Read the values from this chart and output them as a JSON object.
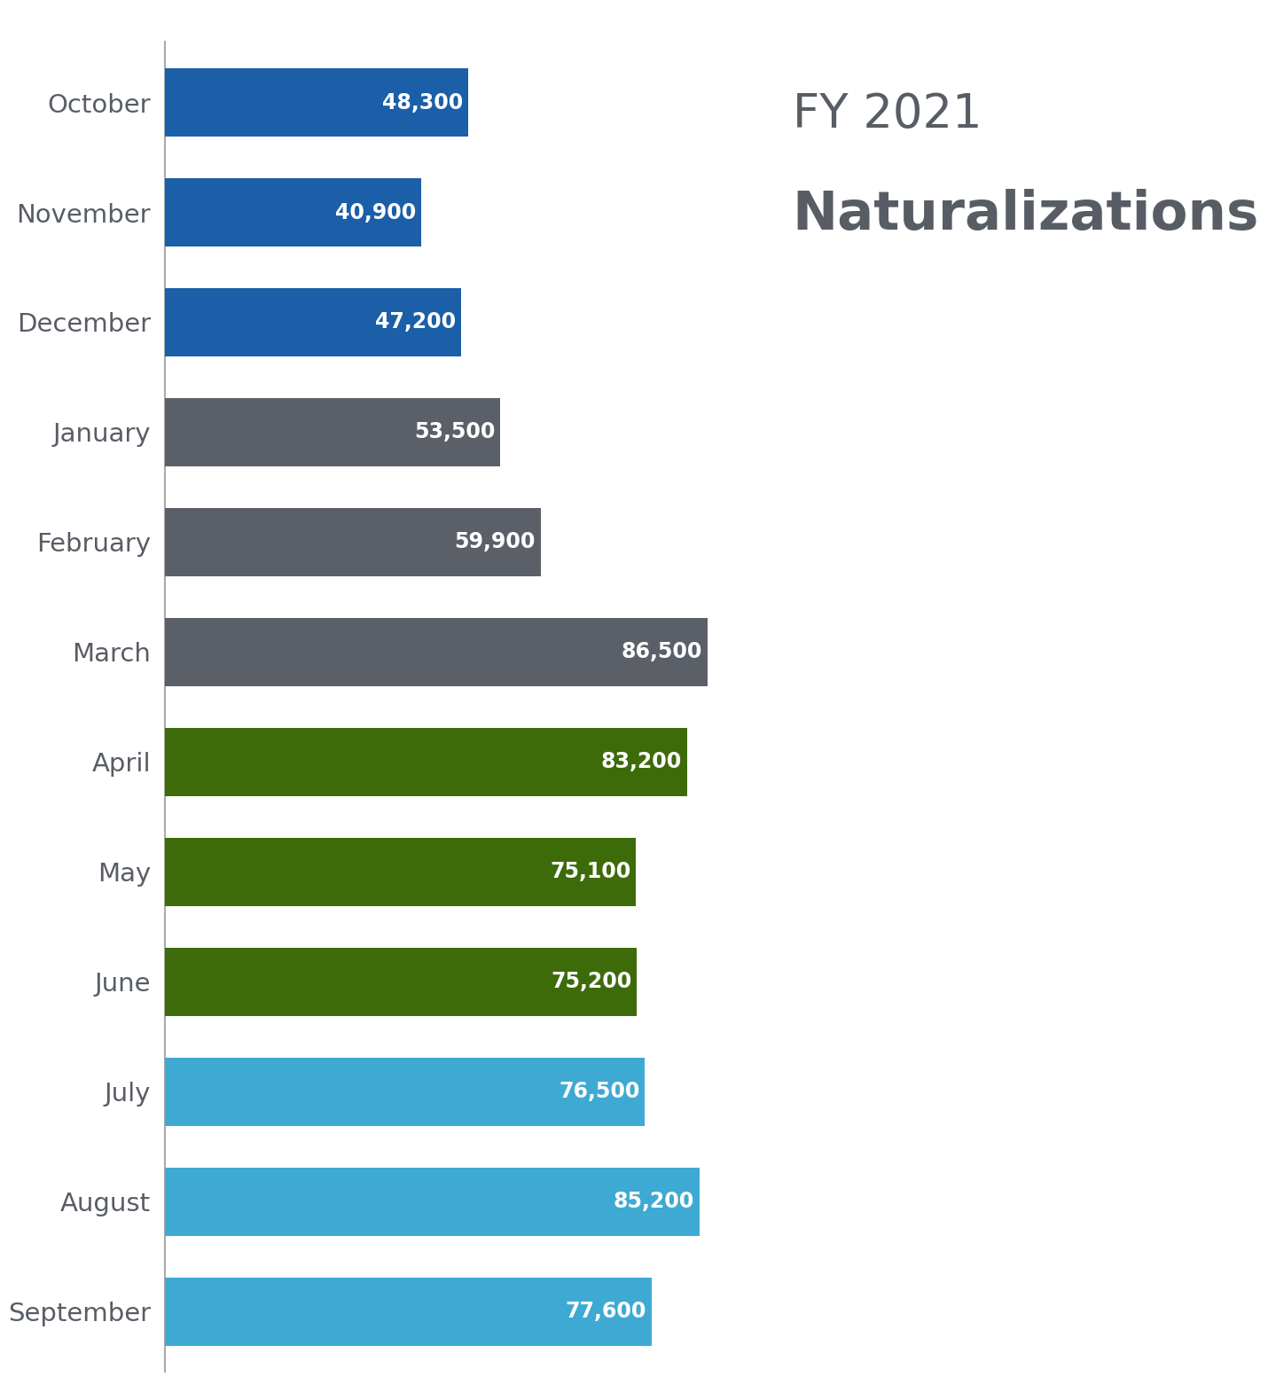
{
  "months": [
    "October",
    "November",
    "December",
    "January",
    "February",
    "March",
    "April",
    "May",
    "June",
    "July",
    "August",
    "September"
  ],
  "values": [
    48300,
    40900,
    47200,
    53500,
    59900,
    86500,
    83200,
    75100,
    75200,
    76500,
    85200,
    77600
  ],
  "bar_colors": [
    "#1a5fa8",
    "#1a5fa8",
    "#1a5fa8",
    "#5b6068",
    "#5b6068",
    "#5b6068",
    "#3d6b0a",
    "#3d6b0a",
    "#3d6b0a",
    "#3eaad4",
    "#3eaad4",
    "#3eaad4"
  ],
  "title_line1": "FY 2021",
  "title_line2": "Naturalizations",
  "title_color": "#585d65",
  "label_color": "#585d65",
  "value_label_color": "#ffffff",
  "background_color": "#ffffff",
  "bar_height": 0.62,
  "xlim": [
    0,
    95000
  ],
  "value_fontsize": 17,
  "label_fontsize": 21,
  "title_fontsize1": 38,
  "title_fontsize2": 44
}
